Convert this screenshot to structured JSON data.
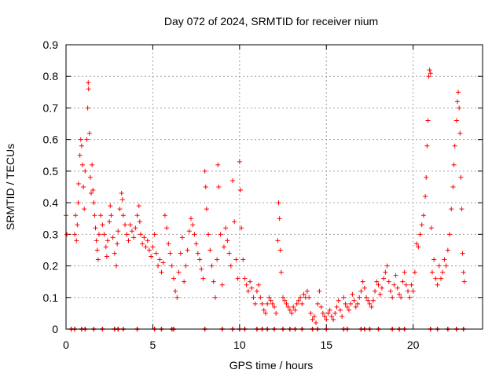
{
  "chart_data": {
    "type": "scatter",
    "title": "Day 072 of 2024, SRMTID for receiver nium",
    "xlabel": "GPS time / hours",
    "ylabel": "SRMTID / TECUs",
    "xlim": [
      0,
      24
    ],
    "ylim": [
      0,
      0.9
    ],
    "xticks": [
      0,
      5,
      10,
      15,
      20
    ],
    "yticks": [
      0,
      0.1,
      0.2,
      0.3,
      0.4,
      0.5,
      0.6,
      0.7,
      0.8,
      0.9
    ],
    "xtick_labels": [
      "0",
      "5",
      "10",
      "15",
      "20"
    ],
    "ytick_labels": [
      "0",
      "0.1",
      "0.2",
      "0.3",
      "0.4",
      "0.5",
      "0.6",
      "0.7",
      "0.8",
      "0.9"
    ],
    "grid": true,
    "marker": "+",
    "series": [
      {
        "name": "SRMTID",
        "color": "#ff0000",
        "points": [
          [
            0.0,
            0.36
          ],
          [
            0.05,
            0.3
          ],
          [
            0.5,
            0.3
          ],
          [
            0.55,
            0.36
          ],
          [
            0.6,
            0.28
          ],
          [
            0.65,
            0.33
          ],
          [
            0.7,
            0.4
          ],
          [
            0.72,
            0.46
          ],
          [
            0.8,
            0.55
          ],
          [
            0.85,
            0.6
          ],
          [
            0.9,
            0.58
          ],
          [
            0.95,
            0.52
          ],
          [
            1.0,
            0.45
          ],
          [
            1.05,
            0.38
          ],
          [
            1.1,
            0.5
          ],
          [
            1.2,
            0.6
          ],
          [
            1.25,
            0.7
          ],
          [
            1.28,
            0.78
          ],
          [
            1.3,
            0.76
          ],
          [
            1.35,
            0.62
          ],
          [
            1.4,
            0.48
          ],
          [
            1.45,
            0.43
          ],
          [
            1.5,
            0.52
          ],
          [
            1.55,
            0.44
          ],
          [
            1.6,
            0.4
          ],
          [
            1.65,
            0.36
          ],
          [
            1.7,
            0.32
          ],
          [
            1.75,
            0.28
          ],
          [
            1.8,
            0.25
          ],
          [
            1.85,
            0.22
          ],
          [
            1.9,
            0.3
          ],
          [
            2.0,
            0.36
          ],
          [
            2.1,
            0.33
          ],
          [
            2.2,
            0.3
          ],
          [
            2.3,
            0.26
          ],
          [
            2.35,
            0.23
          ],
          [
            2.4,
            0.28
          ],
          [
            2.5,
            0.34
          ],
          [
            2.55,
            0.39
          ],
          [
            2.6,
            0.36
          ],
          [
            2.7,
            0.29
          ],
          [
            2.8,
            0.24
          ],
          [
            2.9,
            0.2
          ],
          [
            2.95,
            0.27
          ],
          [
            3.0,
            0.31
          ],
          [
            3.1,
            0.38
          ],
          [
            3.2,
            0.43
          ],
          [
            3.25,
            0.41
          ],
          [
            3.3,
            0.36
          ],
          [
            3.4,
            0.33
          ],
          [
            3.5,
            0.3
          ],
          [
            3.6,
            0.28
          ],
          [
            3.7,
            0.33
          ],
          [
            3.8,
            0.31
          ],
          [
            3.9,
            0.29
          ],
          [
            4.0,
            0.32
          ],
          [
            4.1,
            0.36
          ],
          [
            4.2,
            0.39
          ],
          [
            4.25,
            0.34
          ],
          [
            4.3,
            0.3
          ],
          [
            4.4,
            0.27
          ],
          [
            4.5,
            0.29
          ],
          [
            4.6,
            0.26
          ],
          [
            4.7,
            0.28
          ],
          [
            4.8,
            0.25
          ],
          [
            4.9,
            0.23
          ],
          [
            5.0,
            0.26
          ],
          [
            5.1,
            0.3
          ],
          [
            5.2,
            0.24
          ],
          [
            5.3,
            0.2
          ],
          [
            5.4,
            0.22
          ],
          [
            5.5,
            0.18
          ],
          [
            5.6,
            0.21
          ],
          [
            5.7,
            0.36
          ],
          [
            5.8,
            0.32
          ],
          [
            5.9,
            0.27
          ],
          [
            6.0,
            0.24
          ],
          [
            6.1,
            0.2
          ],
          [
            6.2,
            0.16
          ],
          [
            6.3,
            0.12
          ],
          [
            6.4,
            0.1
          ],
          [
            6.5,
            0.18
          ],
          [
            6.6,
            0.24
          ],
          [
            6.7,
            0.29
          ],
          [
            6.8,
            0.15
          ],
          [
            6.9,
            0.2
          ],
          [
            7.0,
            0.25
          ],
          [
            7.1,
            0.31
          ],
          [
            7.2,
            0.35
          ],
          [
            7.3,
            0.33
          ],
          [
            7.4,
            0.3
          ],
          [
            7.5,
            0.27
          ],
          [
            7.6,
            0.24
          ],
          [
            7.7,
            0.22
          ],
          [
            7.8,
            0.19
          ],
          [
            7.9,
            0.16
          ],
          [
            8.0,
            0.5
          ],
          [
            8.05,
            0.45
          ],
          [
            8.1,
            0.38
          ],
          [
            8.2,
            0.3
          ],
          [
            8.3,
            0.25
          ],
          [
            8.4,
            0.2
          ],
          [
            8.5,
            0.15
          ],
          [
            8.6,
            0.1
          ],
          [
            8.7,
            0.22
          ],
          [
            8.75,
            0.52
          ],
          [
            8.8,
            0.45
          ],
          [
            8.9,
            0.3
          ],
          [
            9.0,
            0.14
          ],
          [
            9.1,
            0.26
          ],
          [
            9.2,
            0.32
          ],
          [
            9.3,
            0.28
          ],
          [
            9.4,
            0.24
          ],
          [
            9.5,
            0.2
          ],
          [
            9.6,
            0.47
          ],
          [
            9.7,
            0.34
          ],
          [
            9.8,
            0.22
          ],
          [
            9.9,
            0.16
          ],
          [
            10.0,
            0.53
          ],
          [
            10.05,
            0.44
          ],
          [
            10.1,
            0.32
          ],
          [
            10.2,
            0.22
          ],
          [
            10.3,
            0.16
          ],
          [
            10.4,
            0.14
          ],
          [
            10.5,
            0.12
          ],
          [
            10.6,
            0.15
          ],
          [
            10.7,
            0.13
          ],
          [
            10.8,
            0.1
          ],
          [
            10.9,
            0.08
          ],
          [
            11.0,
            0.12
          ],
          [
            11.1,
            0.14
          ],
          [
            11.2,
            0.1
          ],
          [
            11.3,
            0.08
          ],
          [
            11.4,
            0.06
          ],
          [
            11.5,
            0.05
          ],
          [
            11.6,
            0.08
          ],
          [
            11.7,
            0.1
          ],
          [
            11.8,
            0.09
          ],
          [
            11.9,
            0.08
          ],
          [
            12.0,
            0.07
          ],
          [
            12.1,
            0.05
          ],
          [
            12.2,
            0.28
          ],
          [
            12.25,
            0.4
          ],
          [
            12.3,
            0.35
          ],
          [
            12.35,
            0.25
          ],
          [
            12.4,
            0.18
          ],
          [
            12.5,
            0.1
          ],
          [
            12.6,
            0.09
          ],
          [
            12.7,
            0.08
          ],
          [
            12.8,
            0.07
          ],
          [
            12.9,
            0.06
          ],
          [
            13.0,
            0.05
          ],
          [
            13.1,
            0.07
          ],
          [
            13.2,
            0.06
          ],
          [
            13.3,
            0.08
          ],
          [
            13.4,
            0.09
          ],
          [
            13.5,
            0.1
          ],
          [
            13.6,
            0.08
          ],
          [
            13.7,
            0.11
          ],
          [
            13.8,
            0.1
          ],
          [
            13.9,
            0.12
          ],
          [
            14.0,
            0.1
          ],
          [
            14.1,
            0.05
          ],
          [
            14.2,
            0.03
          ],
          [
            14.3,
            0.04
          ],
          [
            14.4,
            0.02
          ],
          [
            14.5,
            0.08
          ],
          [
            14.6,
            0.12
          ],
          [
            14.7,
            0.07
          ],
          [
            14.8,
            0.05
          ],
          [
            14.9,
            0.04
          ],
          [
            15.0,
            0.03
          ],
          [
            15.1,
            0.05
          ],
          [
            15.2,
            0.06
          ],
          [
            15.3,
            0.04
          ],
          [
            15.4,
            0.03
          ],
          [
            15.5,
            0.05
          ],
          [
            15.6,
            0.07
          ],
          [
            15.7,
            0.09
          ],
          [
            15.8,
            0.06
          ],
          [
            15.9,
            0.04
          ],
          [
            16.0,
            0.1
          ],
          [
            16.1,
            0.08
          ],
          [
            16.2,
            0.07
          ],
          [
            16.3,
            0.06
          ],
          [
            16.4,
            0.08
          ],
          [
            16.5,
            0.11
          ],
          [
            16.6,
            0.09
          ],
          [
            16.7,
            0.07
          ],
          [
            16.8,
            0.08
          ],
          [
            16.9,
            0.1
          ],
          [
            17.0,
            0.12
          ],
          [
            17.1,
            0.15
          ],
          [
            17.2,
            0.13
          ],
          [
            17.3,
            0.1
          ],
          [
            17.4,
            0.09
          ],
          [
            17.5,
            0.08
          ],
          [
            17.6,
            0.07
          ],
          [
            17.7,
            0.09
          ],
          [
            17.8,
            0.12
          ],
          [
            17.9,
            0.15
          ],
          [
            18.0,
            0.14
          ],
          [
            18.1,
            0.11
          ],
          [
            18.2,
            0.13
          ],
          [
            18.3,
            0.16
          ],
          [
            18.4,
            0.18
          ],
          [
            18.5,
            0.2
          ],
          [
            18.6,
            0.15
          ],
          [
            18.7,
            0.12
          ],
          [
            18.8,
            0.1
          ],
          [
            18.9,
            0.14
          ],
          [
            19.0,
            0.17
          ],
          [
            19.1,
            0.13
          ],
          [
            19.2,
            0.11
          ],
          [
            19.3,
            0.1
          ],
          [
            19.4,
            0.15
          ],
          [
            19.5,
            0.18
          ],
          [
            19.6,
            0.14
          ],
          [
            19.7,
            0.12
          ],
          [
            19.8,
            0.1
          ],
          [
            19.9,
            0.14
          ],
          [
            20.0,
            0.12
          ],
          [
            20.1,
            0.18
          ],
          [
            20.2,
            0.27
          ],
          [
            20.3,
            0.26
          ],
          [
            20.4,
            0.3
          ],
          [
            20.5,
            0.33
          ],
          [
            20.6,
            0.36
          ],
          [
            20.7,
            0.42
          ],
          [
            20.75,
            0.48
          ],
          [
            20.8,
            0.58
          ],
          [
            20.85,
            0.66
          ],
          [
            20.9,
            0.8
          ],
          [
            20.95,
            0.82
          ],
          [
            21.0,
            0.81
          ],
          [
            21.05,
            0.32
          ],
          [
            21.1,
            0.18
          ],
          [
            21.2,
            0.22
          ],
          [
            21.3,
            0.16
          ],
          [
            21.4,
            0.14
          ],
          [
            21.5,
            0.2
          ],
          [
            21.6,
            0.16
          ],
          [
            21.7,
            0.18
          ],
          [
            21.8,
            0.22
          ],
          [
            21.9,
            0.2
          ],
          [
            22.0,
            0.25
          ],
          [
            22.1,
            0.3
          ],
          [
            22.2,
            0.38
          ],
          [
            22.3,
            0.45
          ],
          [
            22.35,
            0.52
          ],
          [
            22.4,
            0.58
          ],
          [
            22.5,
            0.66
          ],
          [
            22.55,
            0.72
          ],
          [
            22.6,
            0.75
          ],
          [
            22.65,
            0.7
          ],
          [
            22.7,
            0.62
          ],
          [
            22.75,
            0.48
          ],
          [
            22.8,
            0.38
          ],
          [
            22.85,
            0.24
          ],
          [
            22.9,
            0.18
          ],
          [
            22.95,
            0.15
          ]
        ]
      }
    ],
    "baseline_markers": {
      "y": 0,
      "x": [
        0.3,
        0.5,
        0.9,
        1.1,
        1.6,
        2.1,
        2.8,
        3.0,
        3.3,
        4.1,
        5.1,
        5.5,
        6.1,
        6.2,
        8.0,
        9.0,
        9.6,
        10.0,
        10.3,
        11.0,
        11.3,
        11.6,
        12.0,
        12.5,
        12.9,
        13.2,
        13.6,
        14.2,
        14.5,
        15.0,
        16.0,
        16.2,
        17.0,
        17.2,
        17.5,
        18.0,
        18.8,
        19.2,
        19.5,
        21.0,
        21.4,
        22.0,
        22.5,
        22.9
      ]
    }
  }
}
